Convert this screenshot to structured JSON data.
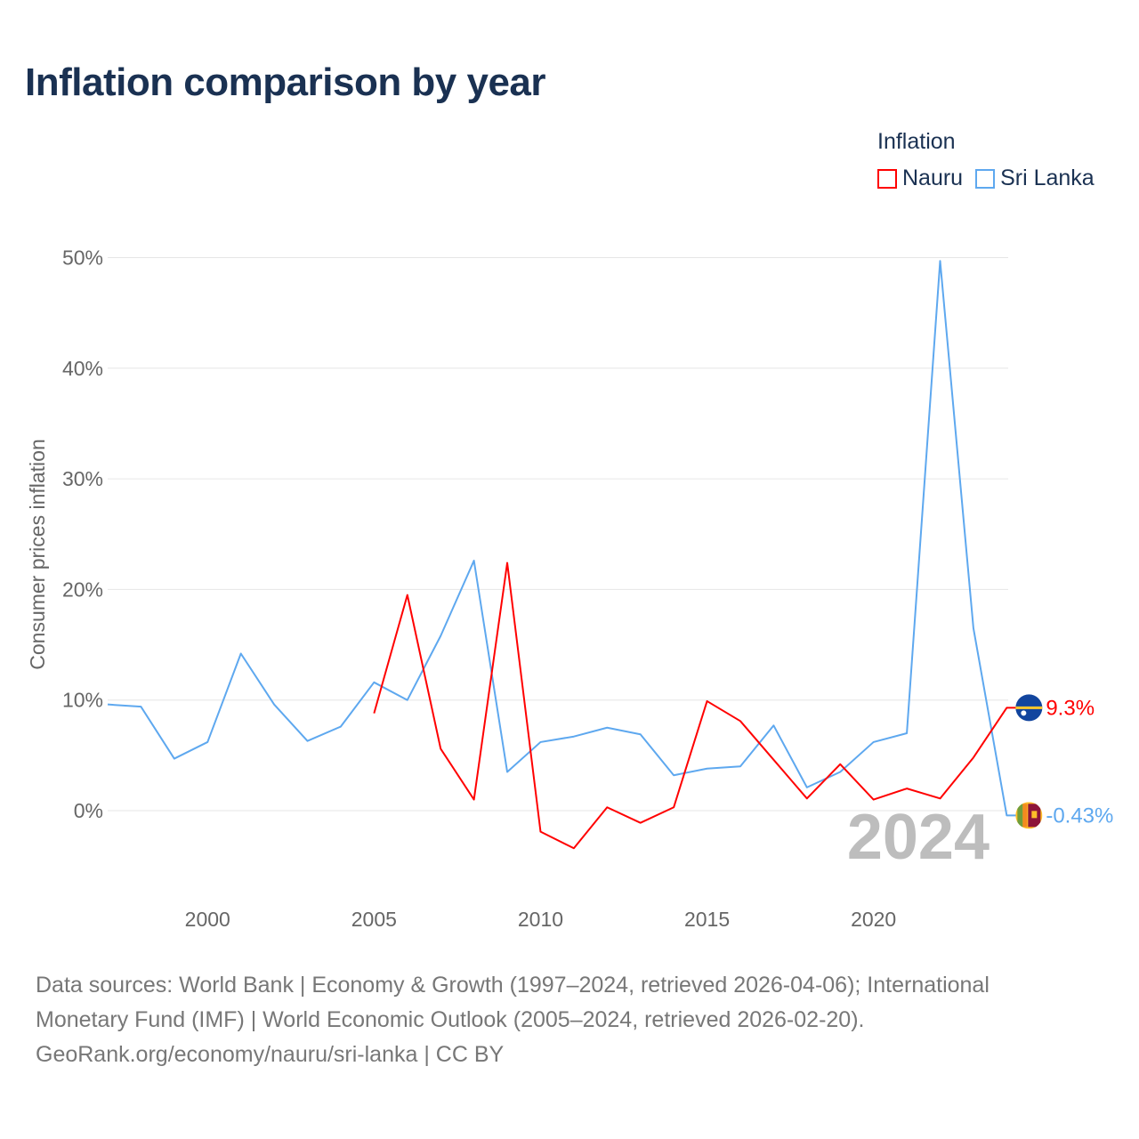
{
  "chart_data": {
    "type": "line",
    "title": "Inflation comparison by year",
    "ylabel": "Consumer prices inflation",
    "xlabel": "",
    "legend_title": "Inflation",
    "legend_position": "top-right",
    "xlim": [
      1997,
      2024
    ],
    "ylim": [
      -7,
      50
    ],
    "x_ticks": [
      2000,
      2005,
      2010,
      2015,
      2020
    ],
    "y_ticks": [
      0,
      10,
      20,
      30,
      40,
      50
    ],
    "y_tick_labels": [
      "0%",
      "10%",
      "20%",
      "30%",
      "40%",
      "50%"
    ],
    "grid": true,
    "year_watermark": "2024",
    "series": [
      {
        "name": "Nauru",
        "color": "#ff0000",
        "end_label": "9.3%",
        "x": [
          2005,
          2006,
          2007,
          2008,
          2009,
          2010,
          2011,
          2012,
          2013,
          2014,
          2015,
          2016,
          2017,
          2018,
          2019,
          2020,
          2021,
          2022,
          2023,
          2024
        ],
        "values": [
          8.8,
          19.5,
          5.6,
          1.0,
          22.4,
          -1.9,
          -3.4,
          0.3,
          -1.1,
          0.3,
          9.9,
          8.1,
          4.6,
          1.1,
          4.2,
          1.0,
          2.0,
          1.1,
          4.8,
          9.3
        ]
      },
      {
        "name": "Sri Lanka",
        "color": "#5ea8ef",
        "end_label": "-0.43%",
        "x": [
          1997,
          1998,
          1999,
          2000,
          2001,
          2002,
          2003,
          2004,
          2005,
          2006,
          2007,
          2008,
          2009,
          2010,
          2011,
          2012,
          2013,
          2014,
          2015,
          2016,
          2017,
          2018,
          2019,
          2020,
          2021,
          2022,
          2023,
          2024
        ],
        "values": [
          9.6,
          9.4,
          4.7,
          6.2,
          14.2,
          9.6,
          6.3,
          7.6,
          11.6,
          10.0,
          15.8,
          22.6,
          3.5,
          6.2,
          6.7,
          7.5,
          6.9,
          3.2,
          3.8,
          4.0,
          7.7,
          2.1,
          3.5,
          6.2,
          7.0,
          49.7,
          16.5,
          -0.43
        ]
      }
    ]
  },
  "footer": {
    "line1": "Data sources: World Bank | Economy & Growth (1997–2024, retrieved 2026-04-06); International",
    "line2": "Monetary Fund (IMF) | World Economic Outlook (2005–2024, retrieved 2026-02-20).",
    "line3": "GeoRank.org/economy/nauru/sri-lanka | CC BY"
  }
}
